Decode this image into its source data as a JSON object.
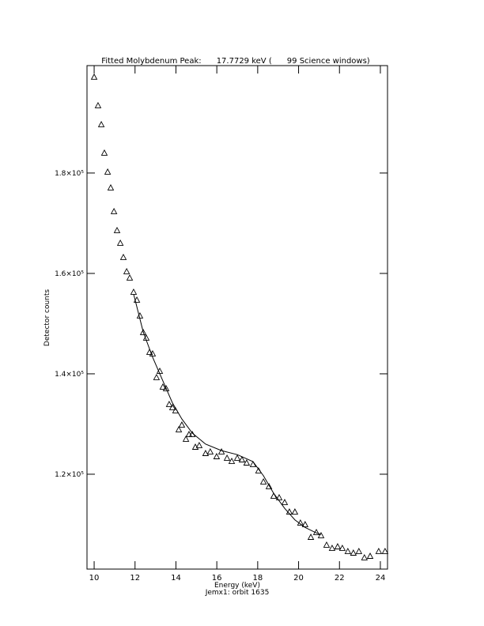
{
  "chart_data": {
    "type": "scatter",
    "title": "Fitted Molybdenum Peak:      17.7729 keV (      99 Science windows)",
    "x_label": "Energy (keV)",
    "y_label": "Detector counts",
    "footer": "Jemx1: orbit 1635",
    "xlim": [
      9.65,
      24.35
    ],
    "ylim": [
      101100,
      201400
    ],
    "xticks": [
      10,
      12,
      14,
      16,
      18,
      20,
      22,
      24
    ],
    "yticks": [
      {
        "value": 120000,
        "label": "1.2×10⁵"
      },
      {
        "value": 140000,
        "label": "1.4×10⁵"
      },
      {
        "value": 160000,
        "label": "1.6×10⁵"
      },
      {
        "value": 180000,
        "label": "1.8×10⁵"
      }
    ],
    "series": [
      {
        "style": "triangle",
        "color": "#000000",
        "x": [
          10.0,
          10.19,
          10.35,
          10.5,
          10.66,
          10.81,
          10.97,
          11.12,
          11.28,
          11.43,
          11.59,
          11.74,
          11.93,
          12.09,
          12.24,
          12.4,
          12.55,
          12.71,
          12.86,
          13.05,
          13.21,
          13.36,
          13.52,
          13.67,
          13.83,
          13.98,
          14.14,
          14.29,
          14.49,
          14.64,
          14.8,
          14.95,
          15.14,
          15.45,
          15.68,
          15.99,
          16.23,
          16.5,
          16.73,
          17.0,
          17.23,
          17.46,
          17.77,
          18.04,
          18.28,
          18.55,
          18.78,
          19.05,
          19.32,
          19.55,
          19.82,
          20.09,
          20.32,
          20.6,
          20.87,
          21.1,
          21.37,
          21.64,
          21.91,
          22.14,
          22.41,
          22.68,
          22.95,
          23.22,
          23.5,
          23.92,
          24.23
        ],
        "values": [
          199060,
          193380,
          189600,
          183940,
          180160,
          177010,
          172280,
          168500,
          165980,
          163150,
          160310,
          159050,
          156220,
          154650,
          151500,
          148190,
          147090,
          144250,
          143940,
          139210,
          140470,
          137320,
          137010,
          133860,
          133230,
          132600,
          128820,
          129760,
          126930,
          127870,
          127870,
          125350,
          125670,
          124090,
          124410,
          123460,
          124410,
          123150,
          122520,
          123150,
          122830,
          122200,
          121890,
          120630,
          118430,
          117480,
          115590,
          115280,
          114330,
          112440,
          112440,
          110240,
          109920,
          107400,
          108350,
          107720,
          105830,
          105200,
          105510,
          105200,
          104570,
          104250,
          104570,
          103310,
          103620,
          104570,
          104570
        ]
      },
      {
        "style": "line",
        "color": "#000000",
        "x": [
          11.93,
          12.4,
          12.86,
          13.36,
          13.83,
          14.29,
          14.8,
          15.45,
          16.23,
          17.0,
          17.77,
          18.28,
          18.78,
          19.32,
          19.82,
          20.32,
          20.87,
          21.1
        ],
        "values": [
          155900,
          148350,
          143300,
          138600,
          134200,
          131000,
          128200,
          126000,
          124700,
          123900,
          122500,
          119700,
          116200,
          113200,
          110900,
          109400,
          108300,
          108000
        ]
      }
    ]
  }
}
